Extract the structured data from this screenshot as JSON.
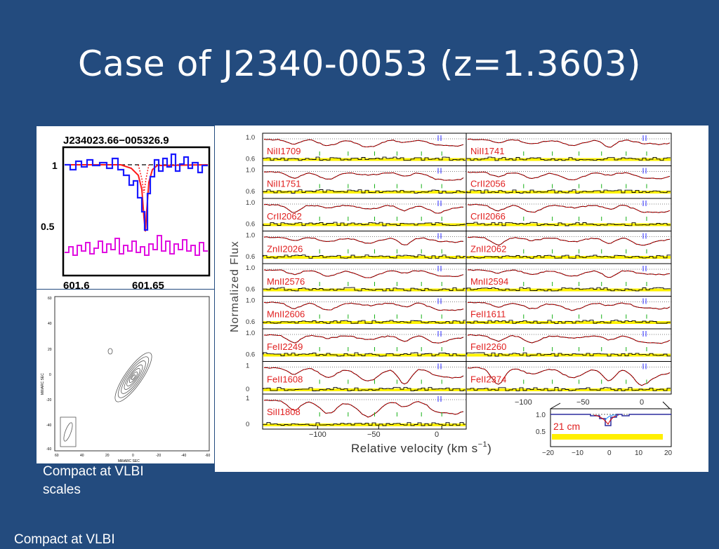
{
  "slide": {
    "title": "Case of J2340-0053 (z=1.3603)",
    "caption_main": "Compact at VLBI scales",
    "caption_cut": "Compact at VLBI"
  },
  "spectrum_panel": {
    "title": "J234023.66−005326.9",
    "y_ticks": [
      "1",
      "0.5"
    ],
    "x_ticks": [
      "601.6",
      "601.65"
    ],
    "colors": {
      "data": "#1a1aff",
      "fit": "#ff1a1a",
      "noise": "#e010e0",
      "ref": "#000000"
    }
  },
  "vlbi_panel": {
    "y_axis_label": "MilliARC SEC",
    "x_axis_label": "MilliARC SEC",
    "y_ticks": [
      "60",
      "40",
      "20",
      "0",
      "-20",
      "-40",
      "-60"
    ],
    "x_ticks": [
      "60",
      "40",
      "20",
      "0",
      "-20",
      "-40",
      "-60"
    ]
  },
  "velocity_panel": {
    "y_axis_label": "Normalized Flux",
    "x_axis_label": "Relative velocity (km s",
    "x_axis_label_sup": "−1",
    "x_axis_label_close": ")",
    "x_ticks": [
      "−100",
      "−50",
      "0"
    ],
    "rows": [
      {
        "ticks": [
          "1.0",
          "0.6"
        ],
        "left": "NiII1709",
        "right": "NiII1741"
      },
      {
        "ticks": [
          "1.0",
          "0.6"
        ],
        "left": "NiII1751",
        "right": "CrII2056"
      },
      {
        "ticks": [
          "1.0",
          "0.6"
        ],
        "left": "CrII2062",
        "right": "CrII2066"
      },
      {
        "ticks": [
          "1.0",
          "0.6"
        ],
        "left": "ZnII2026",
        "right": "ZnII2062"
      },
      {
        "ticks": [
          "1.0",
          "0.6"
        ],
        "left": "MnII2576",
        "right": "MnII2594"
      },
      {
        "ticks": [
          "1.0",
          "0.6"
        ],
        "left": "MnII2606",
        "right": "FeII1611"
      },
      {
        "ticks": [
          "1.0",
          "0.6"
        ],
        "left": "FeII2249",
        "right": "FeII2260"
      },
      {
        "ticks": [
          "1",
          "0"
        ],
        "left": "FeII1608",
        "right": "FeII2374"
      },
      {
        "ticks": [
          "1",
          "0"
        ],
        "left": "SiII1808",
        "right": ""
      }
    ],
    "inset": {
      "label": "21 cm",
      "y_ticks": [
        "1.0",
        "0.5"
      ],
      "x_ticks": [
        "−20",
        "−10",
        "0",
        "10",
        "20"
      ],
      "top_ticks": [
        "−100",
        "−50",
        "0"
      ]
    }
  }
}
